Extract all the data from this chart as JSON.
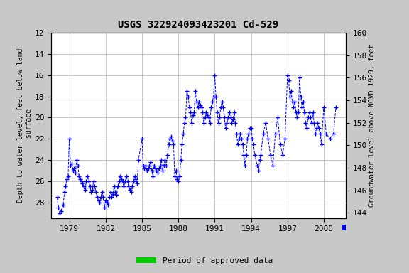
{
  "title": "USGS 322924093423201 Cd-529",
  "ylabel_left": "Depth to water level, feet below land\n surface",
  "ylabel_right": "Groundwater level above NGVD 1929, feet",
  "ylim_left_top": 12,
  "ylim_left_bottom": 29.5,
  "ylim_right_top": 160,
  "ylim_right_bottom": 143.5,
  "left_ticks": [
    12,
    14,
    16,
    18,
    20,
    22,
    24,
    26,
    28
  ],
  "right_ticks": [
    160,
    158,
    156,
    154,
    152,
    150,
    148,
    146,
    144
  ],
  "xticks": [
    1979,
    1982,
    1985,
    1988,
    1991,
    1994,
    1997,
    2000
  ],
  "xlim": [
    1977.5,
    2001.8
  ],
  "background_color": "#c8c8c8",
  "plot_bg_color": "#ffffff",
  "line_color": "#0000ff",
  "legend_label": "Period of approved data",
  "legend_color": "#00cc00",
  "data_x": [
    1978.0,
    1978.1,
    1978.2,
    1978.3,
    1978.5,
    1978.6,
    1978.7,
    1978.8,
    1978.9,
    1979.0,
    1979.1,
    1979.2,
    1979.3,
    1979.4,
    1979.5,
    1979.6,
    1979.7,
    1979.8,
    1979.9,
    1980.0,
    1980.1,
    1980.2,
    1980.3,
    1980.4,
    1980.5,
    1980.6,
    1980.7,
    1980.8,
    1980.9,
    1981.0,
    1981.1,
    1981.2,
    1981.3,
    1981.4,
    1981.5,
    1981.6,
    1981.7,
    1981.8,
    1981.9,
    1982.0,
    1982.1,
    1982.2,
    1982.3,
    1982.4,
    1982.5,
    1982.6,
    1982.7,
    1982.8,
    1982.9,
    1983.0,
    1983.1,
    1983.2,
    1983.3,
    1983.4,
    1983.5,
    1983.6,
    1983.7,
    1983.8,
    1983.9,
    1984.0,
    1984.1,
    1984.2,
    1984.3,
    1984.4,
    1984.5,
    1984.6,
    1984.7,
    1985.0,
    1985.1,
    1985.2,
    1985.3,
    1985.4,
    1985.5,
    1985.6,
    1985.7,
    1985.8,
    1985.9,
    1986.0,
    1986.1,
    1986.2,
    1986.3,
    1986.4,
    1986.5,
    1986.6,
    1986.7,
    1986.8,
    1986.9,
    1987.0,
    1987.1,
    1987.2,
    1987.3,
    1987.4,
    1987.5,
    1987.6,
    1987.7,
    1987.8,
    1987.9,
    1988.0,
    1988.1,
    1988.2,
    1988.3,
    1988.4,
    1988.5,
    1988.6,
    1988.7,
    1988.8,
    1988.9,
    1989.0,
    1989.1,
    1989.2,
    1989.3,
    1989.4,
    1989.5,
    1989.6,
    1989.7,
    1989.8,
    1989.9,
    1990.0,
    1990.1,
    1990.2,
    1990.3,
    1990.4,
    1990.5,
    1990.6,
    1990.7,
    1990.8,
    1990.9,
    1991.0,
    1991.1,
    1991.2,
    1991.3,
    1991.4,
    1991.5,
    1991.6,
    1991.7,
    1991.8,
    1991.9,
    1992.0,
    1992.1,
    1992.2,
    1992.3,
    1992.4,
    1992.5,
    1992.6,
    1992.7,
    1992.8,
    1992.9,
    1993.0,
    1993.1,
    1993.2,
    1993.3,
    1993.4,
    1993.5,
    1993.6,
    1993.7,
    1993.8,
    1993.9,
    1994.0,
    1994.1,
    1994.2,
    1994.3,
    1994.5,
    1994.6,
    1994.7,
    1994.8,
    1995.0,
    1995.2,
    1995.4,
    1995.6,
    1995.8,
    1996.0,
    1996.2,
    1996.4,
    1996.6,
    1996.8,
    1997.0,
    1997.1,
    1997.2,
    1997.3,
    1997.4,
    1997.5,
    1997.6,
    1997.7,
    1997.8,
    1997.9,
    1998.0,
    1998.1,
    1998.2,
    1998.3,
    1998.4,
    1998.5,
    1998.6,
    1998.7,
    1998.8,
    1998.9,
    1999.0,
    1999.1,
    1999.2,
    1999.3,
    1999.4,
    1999.5,
    1999.6,
    1999.7,
    1999.8,
    2000.0,
    2000.2,
    2000.5,
    2000.8,
    2001.0
  ],
  "data_y": [
    27.5,
    28.5,
    29.0,
    28.8,
    28.2,
    27.0,
    26.5,
    25.8,
    25.5,
    22.0,
    24.5,
    24.3,
    25.0,
    24.8,
    25.2,
    24.0,
    24.5,
    25.5,
    25.8,
    26.0,
    26.2,
    26.5,
    26.8,
    26.0,
    25.5,
    26.0,
    26.5,
    27.0,
    26.8,
    26.0,
    26.5,
    27.0,
    27.5,
    27.8,
    28.0,
    27.5,
    27.0,
    27.5,
    28.5,
    27.8,
    28.0,
    28.2,
    27.5,
    27.0,
    27.5,
    27.2,
    26.5,
    27.0,
    27.3,
    26.5,
    26.0,
    25.5,
    25.8,
    26.0,
    26.5,
    26.0,
    25.5,
    26.0,
    26.5,
    26.8,
    27.0,
    26.5,
    26.0,
    25.5,
    25.8,
    26.2,
    24.0,
    22.0,
    24.5,
    24.8,
    24.5,
    25.0,
    24.8,
    24.5,
    24.2,
    25.0,
    25.5,
    24.5,
    24.8,
    25.0,
    25.2,
    24.8,
    24.5,
    24.0,
    25.0,
    24.5,
    24.0,
    24.5,
    23.5,
    22.5,
    22.0,
    21.8,
    22.2,
    22.5,
    25.5,
    25.0,
    25.8,
    26.0,
    25.5,
    24.0,
    22.5,
    21.5,
    20.5,
    20.0,
    17.5,
    18.0,
    19.0,
    19.5,
    20.5,
    19.8,
    19.5,
    17.5,
    18.5,
    19.0,
    18.5,
    18.8,
    19.0,
    19.5,
    20.5,
    20.0,
    19.5,
    19.8,
    20.0,
    20.5,
    19.0,
    18.5,
    18.0,
    16.0,
    18.0,
    19.5,
    20.5,
    20.0,
    19.0,
    18.5,
    19.0,
    20.0,
    21.0,
    20.5,
    20.0,
    19.5,
    20.0,
    20.5,
    20.2,
    19.5,
    20.5,
    21.5,
    22.5,
    22.0,
    21.5,
    22.0,
    22.5,
    23.5,
    24.5,
    23.5,
    22.0,
    21.5,
    21.0,
    21.0,
    22.0,
    22.5,
    23.5,
    24.5,
    25.0,
    24.0,
    23.5,
    21.5,
    20.5,
    22.0,
    23.5,
    24.5,
    21.5,
    20.0,
    22.5,
    23.5,
    22.0,
    16.0,
    16.5,
    18.0,
    17.5,
    18.5,
    19.0,
    18.5,
    19.5,
    20.0,
    19.5,
    16.2,
    18.0,
    19.0,
    18.5,
    19.5,
    20.5,
    21.0,
    20.0,
    19.5,
    20.0,
    20.5,
    19.5,
    20.5,
    21.5,
    21.0,
    20.5,
    21.0,
    21.5,
    22.5,
    19.0,
    21.5,
    22.0,
    21.5,
    19.0
  ]
}
